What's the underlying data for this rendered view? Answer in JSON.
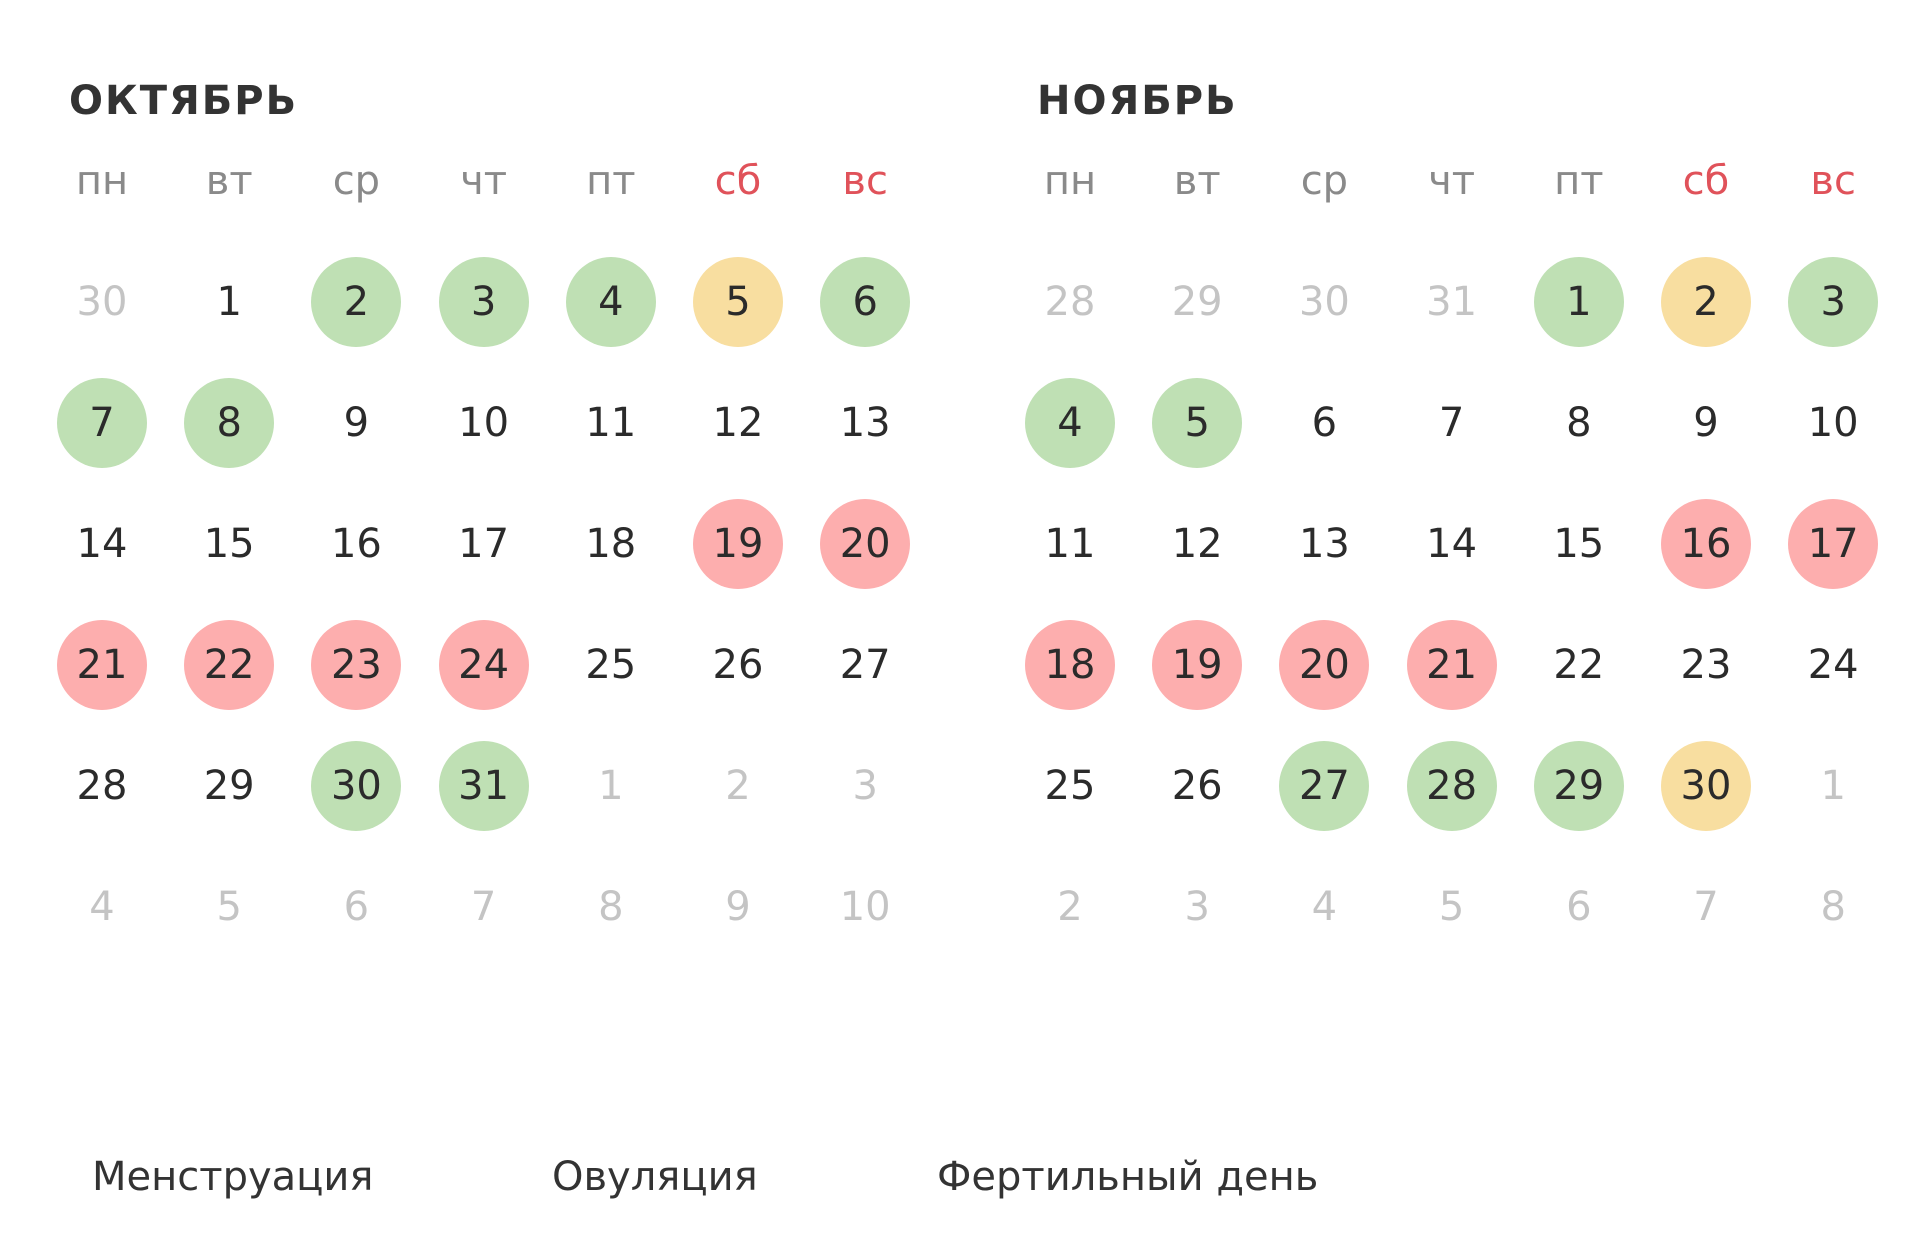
{
  "colors": {
    "menstruation": "#fdaeae",
    "ovulation": "#f8dea0",
    "fertile": "#bfe0b4",
    "weekend_text": "#e0525a",
    "outside_text": "#c4c4c4"
  },
  "weekdays": [
    {
      "label": "пн",
      "weekend": false
    },
    {
      "label": "вт",
      "weekend": false
    },
    {
      "label": "ср",
      "weekend": false
    },
    {
      "label": "чт",
      "weekend": false
    },
    {
      "label": "пт",
      "weekend": false
    },
    {
      "label": "сб",
      "weekend": true
    },
    {
      "label": "вс",
      "weekend": true
    }
  ],
  "months": [
    {
      "title": "ОКТЯБРЬ",
      "weeks": [
        [
          {
            "d": "30",
            "type": "outside"
          },
          {
            "d": "1",
            "type": "normal"
          },
          {
            "d": "2",
            "type": "fertile"
          },
          {
            "d": "3",
            "type": "fertile"
          },
          {
            "d": "4",
            "type": "fertile"
          },
          {
            "d": "5",
            "type": "ovulation"
          },
          {
            "d": "6",
            "type": "fertile"
          }
        ],
        [
          {
            "d": "7",
            "type": "fertile"
          },
          {
            "d": "8",
            "type": "fertile"
          },
          {
            "d": "9",
            "type": "normal"
          },
          {
            "d": "10",
            "type": "normal"
          },
          {
            "d": "11",
            "type": "normal"
          },
          {
            "d": "12",
            "type": "normal"
          },
          {
            "d": "13",
            "type": "normal"
          }
        ],
        [
          {
            "d": "14",
            "type": "normal"
          },
          {
            "d": "15",
            "type": "normal"
          },
          {
            "d": "16",
            "type": "normal"
          },
          {
            "d": "17",
            "type": "normal"
          },
          {
            "d": "18",
            "type": "normal"
          },
          {
            "d": "19",
            "type": "menstruation"
          },
          {
            "d": "20",
            "type": "menstruation"
          }
        ],
        [
          {
            "d": "21",
            "type": "menstruation"
          },
          {
            "d": "22",
            "type": "menstruation"
          },
          {
            "d": "23",
            "type": "menstruation"
          },
          {
            "d": "24",
            "type": "menstruation"
          },
          {
            "d": "25",
            "type": "normal"
          },
          {
            "d": "26",
            "type": "normal"
          },
          {
            "d": "27",
            "type": "normal"
          }
        ],
        [
          {
            "d": "28",
            "type": "normal"
          },
          {
            "d": "29",
            "type": "normal"
          },
          {
            "d": "30",
            "type": "fertile"
          },
          {
            "d": "31",
            "type": "fertile"
          },
          {
            "d": "1",
            "type": "outside"
          },
          {
            "d": "2",
            "type": "outside"
          },
          {
            "d": "3",
            "type": "outside"
          }
        ],
        [
          {
            "d": "4",
            "type": "outside"
          },
          {
            "d": "5",
            "type": "outside"
          },
          {
            "d": "6",
            "type": "outside"
          },
          {
            "d": "7",
            "type": "outside"
          },
          {
            "d": "8",
            "type": "outside"
          },
          {
            "d": "9",
            "type": "outside"
          },
          {
            "d": "10",
            "type": "outside"
          }
        ]
      ]
    },
    {
      "title": "НОЯБРЬ",
      "weeks": [
        [
          {
            "d": "28",
            "type": "outside"
          },
          {
            "d": "29",
            "type": "outside"
          },
          {
            "d": "30",
            "type": "outside"
          },
          {
            "d": "31",
            "type": "outside"
          },
          {
            "d": "1",
            "type": "fertile"
          },
          {
            "d": "2",
            "type": "ovulation"
          },
          {
            "d": "3",
            "type": "fertile"
          }
        ],
        [
          {
            "d": "4",
            "type": "fertile"
          },
          {
            "d": "5",
            "type": "fertile"
          },
          {
            "d": "6",
            "type": "normal"
          },
          {
            "d": "7",
            "type": "normal"
          },
          {
            "d": "8",
            "type": "normal"
          },
          {
            "d": "9",
            "type": "normal"
          },
          {
            "d": "10",
            "type": "normal"
          }
        ],
        [
          {
            "d": "11",
            "type": "normal"
          },
          {
            "d": "12",
            "type": "normal"
          },
          {
            "d": "13",
            "type": "normal"
          },
          {
            "d": "14",
            "type": "normal"
          },
          {
            "d": "15",
            "type": "normal"
          },
          {
            "d": "16",
            "type": "menstruation"
          },
          {
            "d": "17",
            "type": "menstruation"
          }
        ],
        [
          {
            "d": "18",
            "type": "menstruation"
          },
          {
            "d": "19",
            "type": "menstruation"
          },
          {
            "d": "20",
            "type": "menstruation"
          },
          {
            "d": "21",
            "type": "menstruation"
          },
          {
            "d": "22",
            "type": "normal"
          },
          {
            "d": "23",
            "type": "normal"
          },
          {
            "d": "24",
            "type": "normal"
          }
        ],
        [
          {
            "d": "25",
            "type": "normal"
          },
          {
            "d": "26",
            "type": "normal"
          },
          {
            "d": "27",
            "type": "fertile"
          },
          {
            "d": "28",
            "type": "fertile"
          },
          {
            "d": "29",
            "type": "fertile"
          },
          {
            "d": "30",
            "type": "ovulation"
          },
          {
            "d": "1",
            "type": "outside"
          }
        ],
        [
          {
            "d": "2",
            "type": "outside"
          },
          {
            "d": "3",
            "type": "outside"
          },
          {
            "d": "4",
            "type": "outside"
          },
          {
            "d": "5",
            "type": "outside"
          },
          {
            "d": "6",
            "type": "outside"
          },
          {
            "d": "7",
            "type": "outside"
          },
          {
            "d": "8",
            "type": "outside"
          }
        ]
      ]
    }
  ],
  "legend": [
    {
      "type": "menstruation",
      "label": "Менструация"
    },
    {
      "type": "ovulation",
      "label": "Овуляция"
    },
    {
      "type": "fertile",
      "label": "Фертильный день"
    }
  ]
}
